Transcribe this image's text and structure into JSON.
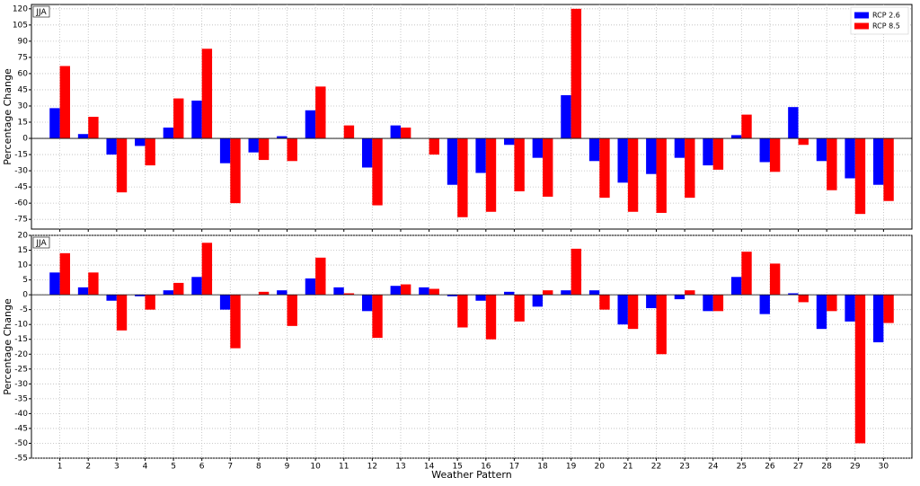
{
  "chart_data": [
    {
      "type": "bar",
      "annotation": "JJA",
      "ylabel": "Percentage Change",
      "ylim": [
        -84,
        124
      ],
      "yticks": [
        -75,
        -60,
        -45,
        -30,
        -15,
        0,
        15,
        30,
        45,
        60,
        75,
        90,
        105,
        120
      ],
      "grid": true,
      "legend": "upper right",
      "series": [
        {
          "name": "RCP 2.6",
          "color": "#0000ff",
          "values": [
            28,
            4,
            -15,
            -7,
            10,
            35,
            -23,
            -13,
            2,
            26,
            0,
            -27,
            12,
            0,
            -43,
            -32,
            -6,
            -18,
            40,
            -21,
            -41,
            -33,
            -18,
            -25,
            3,
            -22,
            29,
            -21,
            -37,
            -43
          ]
        },
        {
          "name": "RCP 8.5",
          "color": "#ff0000",
          "values": [
            67,
            20,
            -50,
            -25,
            37,
            83,
            -60,
            -20,
            -21,
            48,
            12,
            -62,
            10,
            -15,
            -73,
            -68,
            -49,
            -54,
            120,
            -55,
            -68,
            -69,
            -55,
            -29,
            22,
            -31,
            -6,
            -48,
            -70,
            -58
          ]
        }
      ]
    },
    {
      "type": "bar",
      "annotation": "JJA",
      "ylabel": "Percentage Change",
      "xlabel": "Weather Pattern",
      "ylim": [
        -55,
        20
      ],
      "yticks": [
        -55,
        -50,
        -45,
        -40,
        -35,
        -30,
        -25,
        -20,
        -15,
        -10,
        -5,
        0,
        5,
        10,
        15,
        20
      ],
      "grid": true,
      "categories": [
        "1",
        "2",
        "3",
        "4",
        "5",
        "6",
        "7",
        "8",
        "9",
        "10",
        "11",
        "12",
        "13",
        "14",
        "15",
        "16",
        "17",
        "18",
        "19",
        "20",
        "21",
        "22",
        "23",
        "24",
        "25",
        "26",
        "27",
        "28",
        "29",
        "30"
      ],
      "series": [
        {
          "color": "#0000ff",
          "values": [
            7.5,
            2.5,
            -2,
            -0.5,
            1.5,
            6,
            -5,
            0,
            1.5,
            5.5,
            2.5,
            -5.5,
            3,
            2.5,
            -0.5,
            -2,
            1,
            -4,
            1.5,
            1.5,
            -10,
            -4.5,
            -1.5,
            -5.5,
            6,
            -6.5,
            0.5,
            -11.5,
            -9,
            -16
          ]
        },
        {
          "color": "#ff0000",
          "values": [
            14,
            7.5,
            -12,
            -5,
            4,
            17.5,
            -18,
            1,
            -10.5,
            12.5,
            0.5,
            -14.5,
            3.5,
            2,
            -11,
            -15,
            -9,
            1.5,
            15.5,
            -5,
            -11.5,
            -20,
            1.5,
            -5.5,
            14.5,
            10.5,
            -2.5,
            -5.5,
            -50,
            -9.5
          ]
        }
      ]
    }
  ]
}
